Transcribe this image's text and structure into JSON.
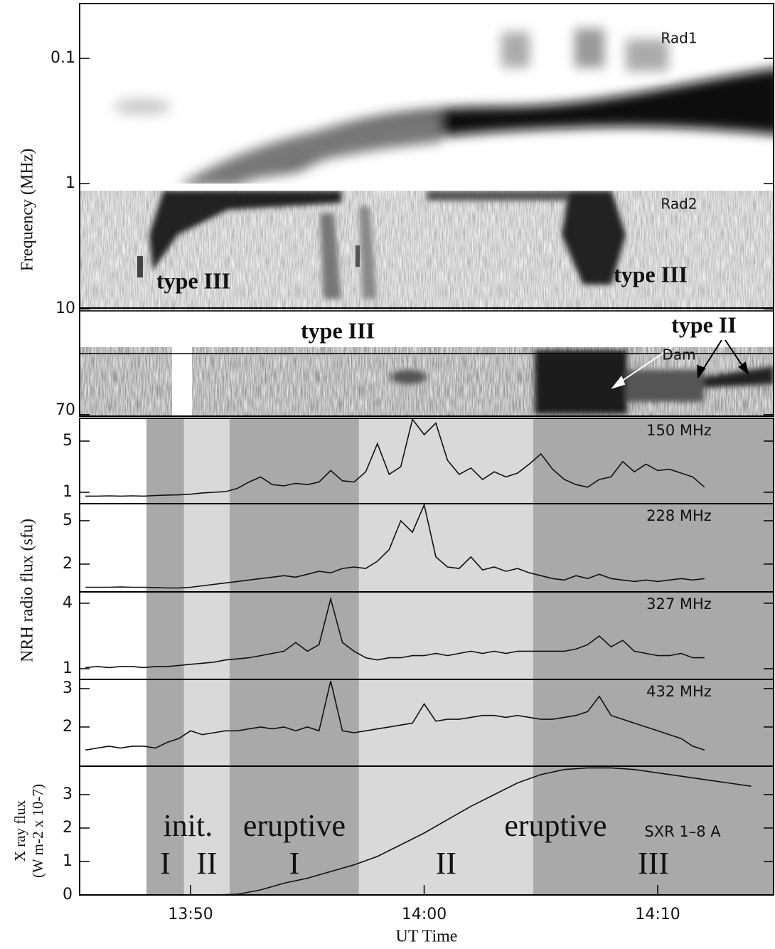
{
  "chart_data": [
    {
      "type": "spectrogram",
      "ylabel": "Frequency (MHz)",
      "log_scale": true,
      "y_inverted": true,
      "ylim": [
        0.0365,
        72
      ],
      "yticks": [
        0.1,
        1,
        10,
        70
      ],
      "xlim": [
        45.25,
        74.96
      ],
      "annotations": [
        "Rad1",
        "Rad2",
        "Dam",
        "type III",
        "type III",
        "type III",
        "type II"
      ]
    },
    {
      "type": "line",
      "label": "150 MHz",
      "ylabel": "NRH radio  flux (sfu)",
      "color": "#111111",
      "xlim": [
        45.25,
        74.96
      ],
      "ylim": [
        0.11,
        6.78
      ],
      "yticks": [
        1,
        5
      ],
      "x": [
        45.5,
        46,
        46.5,
        47,
        47.5,
        48,
        48.5,
        49,
        49.5,
        50,
        50.5,
        51,
        51.5,
        52,
        52.5,
        53,
        53.5,
        54,
        54.5,
        55,
        55.5,
        56,
        56.5,
        57,
        57.5,
        58,
        58.5,
        59,
        59.5,
        60,
        60.5,
        61,
        61.5,
        62,
        62.5,
        63,
        63.5,
        64,
        64.5,
        65,
        65.5,
        66,
        66.5,
        67,
        67.5,
        68,
        68.5,
        69,
        69.5,
        70,
        70.5,
        71,
        71.5,
        72
      ],
      "values": [
        0.7,
        0.7,
        0.72,
        0.7,
        0.72,
        0.7,
        0.75,
        0.78,
        0.8,
        0.85,
        0.95,
        1.0,
        1.05,
        1.3,
        1.8,
        2.2,
        1.6,
        1.5,
        1.7,
        1.6,
        1.8,
        2.7,
        1.9,
        1.8,
        2.6,
        4.8,
        2.4,
        3.0,
        6.7,
        5.5,
        6.4,
        3.5,
        2.4,
        2.9,
        2.0,
        2.6,
        2.2,
        2.5,
        3.2,
        4.0,
        2.8,
        2.0,
        1.6,
        1.4,
        2.0,
        2.2,
        3.4,
        2.6,
        3.2,
        2.7,
        2.8,
        2.5,
        2.2,
        1.4
      ]
    },
    {
      "type": "line",
      "label": "228 MHz",
      "color": "#111111",
      "xlim": [
        45.25,
        74.96
      ],
      "ylim": [
        0.08,
        6.18
      ],
      "yticks": [
        2,
        5
      ],
      "x": [
        45.5,
        46,
        46.5,
        47,
        47.5,
        48,
        48.5,
        49,
        49.5,
        50,
        50.5,
        51,
        51.5,
        52,
        52.5,
        53,
        53.5,
        54,
        54.5,
        55,
        55.5,
        56,
        56.5,
        57,
        57.5,
        58,
        58.5,
        59,
        59.5,
        60,
        60.5,
        61,
        61.5,
        62,
        62.5,
        63,
        63.5,
        64,
        64.5,
        65,
        65.5,
        66,
        66.5,
        67,
        67.5,
        68,
        68.5,
        69,
        69.5,
        70,
        70.5,
        71,
        71.5,
        72
      ],
      "values": [
        0.4,
        0.4,
        0.4,
        0.42,
        0.4,
        0.4,
        0.38,
        0.35,
        0.35,
        0.4,
        0.5,
        0.6,
        0.7,
        0.8,
        0.9,
        1.0,
        1.1,
        1.2,
        1.1,
        1.3,
        1.5,
        1.4,
        1.7,
        1.8,
        1.7,
        2.2,
        3.0,
        5.0,
        4.2,
        6.1,
        2.5,
        1.8,
        1.7,
        2.5,
        1.6,
        1.8,
        1.5,
        1.7,
        1.4,
        1.2,
        1.0,
        0.9,
        1.2,
        1.0,
        1.3,
        1.0,
        0.9,
        0.8,
        0.9,
        0.8,
        0.9,
        1.0,
        0.9,
        1.0
      ]
    },
    {
      "type": "line",
      "label": "327 MHz",
      "color": "#111111",
      "xlim": [
        45.25,
        74.96
      ],
      "ylim": [
        0.51,
        4.52
      ],
      "yticks": [
        1,
        4
      ],
      "x": [
        45.5,
        46,
        46.5,
        47,
        47.5,
        48,
        48.5,
        49,
        49.5,
        50,
        50.5,
        51,
        51.5,
        52,
        52.5,
        53,
        53.5,
        54,
        54.5,
        55,
        55.5,
        56,
        56.5,
        57,
        57.5,
        58,
        58.5,
        59,
        59.5,
        60,
        60.5,
        61,
        61.5,
        62,
        62.5,
        63,
        63.5,
        64,
        64.5,
        65,
        65.5,
        66,
        66.5,
        67,
        67.5,
        68,
        68.5,
        69,
        69.5,
        70,
        70.5,
        71,
        71.5,
        72
      ],
      "values": [
        1.05,
        1.1,
        1.05,
        1.1,
        1.1,
        1.05,
        1.1,
        1.1,
        1.15,
        1.2,
        1.25,
        1.3,
        1.4,
        1.45,
        1.5,
        1.6,
        1.7,
        1.8,
        2.2,
        1.8,
        2.1,
        4.2,
        2.2,
        1.8,
        1.5,
        1.4,
        1.5,
        1.5,
        1.6,
        1.6,
        1.7,
        1.6,
        1.7,
        1.8,
        1.7,
        1.8,
        1.7,
        1.8,
        1.8,
        1.8,
        1.8,
        1.8,
        1.9,
        2.1,
        2.5,
        2.0,
        2.3,
        1.8,
        1.7,
        1.6,
        1.6,
        1.7,
        1.5,
        1.5
      ]
    },
    {
      "type": "line",
      "label": "432 MHz",
      "color": "#111111",
      "xlim": [
        45.25,
        74.96
      ],
      "ylim": [
        0.98,
        3.24
      ],
      "yticks": [
        2,
        3
      ],
      "x": [
        45.5,
        46,
        46.5,
        47,
        47.5,
        48,
        48.5,
        49,
        49.5,
        50,
        50.5,
        51,
        51.5,
        52,
        52.5,
        53,
        53.5,
        54,
        54.5,
        55,
        55.5,
        56,
        56.5,
        57,
        57.5,
        58,
        58.5,
        59,
        59.5,
        60,
        60.5,
        61,
        61.5,
        62,
        62.5,
        63,
        63.5,
        64,
        64.5,
        65,
        65.5,
        66,
        66.5,
        67,
        67.5,
        68,
        68.5,
        69,
        69.5,
        70,
        70.5,
        71,
        71.5,
        72
      ],
      "values": [
        1.4,
        1.45,
        1.5,
        1.45,
        1.5,
        1.5,
        1.45,
        1.6,
        1.7,
        1.9,
        1.8,
        1.85,
        1.9,
        1.9,
        1.95,
        2.0,
        1.95,
        2.0,
        1.9,
        2.0,
        1.9,
        3.2,
        1.9,
        1.85,
        1.9,
        1.95,
        2.0,
        2.05,
        2.1,
        2.6,
        2.15,
        2.2,
        2.2,
        2.25,
        2.3,
        2.3,
        2.25,
        2.3,
        2.25,
        2.2,
        2.2,
        2.25,
        2.3,
        2.4,
        2.8,
        2.3,
        2.2,
        2.1,
        2.0,
        1.9,
        1.8,
        1.7,
        1.5,
        1.4
      ]
    },
    {
      "type": "line",
      "label": "SXR 1–8 A",
      "ylabel": [
        "X ray flux",
        "(W m-2 x 10-7)"
      ],
      "xlabel": "UT Time",
      "color": "#111111",
      "xlim": [
        45.25,
        74.96
      ],
      "ylim": [
        0,
        3.85
      ],
      "yticks": [
        0,
        1,
        2,
        3
      ],
      "xticks": [
        {
          "value": 50,
          "label": "13:50"
        },
        {
          "value": 60,
          "label": "14:00"
        },
        {
          "value": 70,
          "label": "14:10"
        }
      ],
      "x": [
        46,
        47,
        48,
        49,
        50,
        51,
        52,
        53,
        54,
        55,
        56,
        57,
        58,
        59,
        60,
        61,
        62,
        63,
        64,
        65,
        66,
        67,
        68,
        69,
        70,
        71,
        72,
        73,
        74
      ],
      "values": [
        0,
        0,
        0,
        0,
        0,
        0,
        0.02,
        0.15,
        0.35,
        0.5,
        0.7,
        0.9,
        1.15,
        1.5,
        1.85,
        2.25,
        2.65,
        3.0,
        3.35,
        3.6,
        3.75,
        3.8,
        3.8,
        3.75,
        3.65,
        3.55,
        3.45,
        3.35,
        3.25
      ],
      "phases": [
        {
          "label": "I",
          "start": 48.11,
          "end": 49.72,
          "color": "#a9a9a9"
        },
        {
          "label": "II",
          "start": 49.72,
          "end": 51.67,
          "color": "#d9d9d9"
        },
        {
          "label": "I",
          "start": 51.67,
          "end": 57.21,
          "color": "#a9a9a9"
        },
        {
          "label": "II",
          "start": 57.21,
          "end": 64.67,
          "color": "#d9d9d9"
        },
        {
          "label": "III",
          "start": 64.67,
          "end": 74.96,
          "color": "#a9a9a9"
        }
      ],
      "phase_groups": [
        {
          "label": "init.",
          "start": 48.11,
          "end": 51.67
        },
        {
          "label": "eruptive",
          "start": 51.67,
          "end": 57.21
        },
        {
          "label": "eruptive",
          "start": 57.21,
          "end": 74.96
        }
      ]
    }
  ]
}
